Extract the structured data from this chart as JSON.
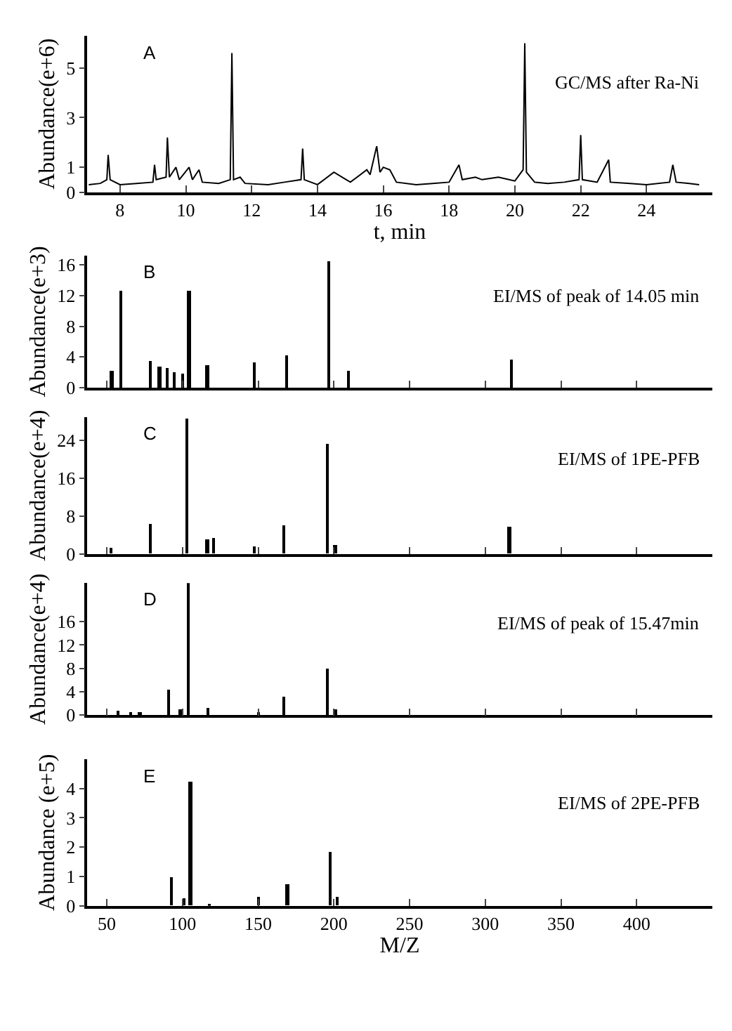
{
  "chart_data": [
    {
      "type": "line",
      "title": "A",
      "annotations": [
        "GC/MS after Ra-Ni"
      ],
      "xlabel": "t, min",
      "ylabel": "Abundance(e+6)",
      "x": [
        7.05,
        7.4,
        7.6,
        7.64,
        7.7,
        8.0,
        8.5,
        9.0,
        9.05,
        9.1,
        9.4,
        9.44,
        9.5,
        9.7,
        9.8,
        10.1,
        10.2,
        10.4,
        10.5,
        11.0,
        11.35,
        11.4,
        11.45,
        11.65,
        11.8,
        12.5,
        13.0,
        13.5,
        13.55,
        13.6,
        14.0,
        14.5,
        15.0,
        15.5,
        15.6,
        15.8,
        15.9,
        16.0,
        16.2,
        16.4,
        17.0,
        17.5,
        18.0,
        18.3,
        18.4,
        18.8,
        19.0,
        19.5,
        20.0,
        20.25,
        20.3,
        20.35,
        20.6,
        21.0,
        21.5,
        21.95,
        22.0,
        22.05,
        22.5,
        22.85,
        22.9,
        23.5,
        24.0,
        24.7,
        24.8,
        24.9,
        25.3,
        25.6
      ],
      "series": [
        {
          "color": "#000000",
          "values": [
            0.3,
            0.35,
            0.5,
            1.5,
            0.5,
            0.3,
            0.35,
            0.4,
            1.1,
            0.5,
            0.6,
            2.2,
            0.6,
            1.0,
            0.5,
            1.0,
            0.5,
            0.9,
            0.4,
            0.35,
            0.5,
            5.6,
            0.5,
            0.6,
            0.35,
            0.3,
            0.4,
            0.5,
            1.75,
            0.5,
            0.3,
            0.8,
            0.4,
            0.9,
            0.7,
            1.85,
            0.8,
            1.0,
            0.9,
            0.4,
            0.3,
            0.35,
            0.4,
            1.1,
            0.5,
            0.6,
            0.5,
            0.6,
            0.45,
            0.9,
            6.0,
            0.8,
            0.4,
            0.35,
            0.4,
            0.5,
            2.3,
            0.5,
            0.4,
            1.3,
            0.4,
            0.35,
            0.3,
            0.4,
            1.1,
            0.4,
            0.35,
            0.3
          ]
        }
      ],
      "xlim": [
        7,
        26
      ],
      "xticks": [
        8,
        10,
        12,
        14,
        16,
        18,
        20,
        22,
        24
      ],
      "ylim": [
        0,
        6.3
      ],
      "yticks": [
        0,
        1,
        3,
        5
      ]
    },
    {
      "type": "bar",
      "title": "B",
      "annotations": [
        "EI/MS of peak of 14.05 min"
      ],
      "ylabel": "Abundance(e+3)",
      "x": [
        53.5,
        59.2,
        79,
        85,
        90,
        95,
        100,
        104.5,
        116.6,
        148,
        168.8,
        196.8,
        209.6,
        317.8
      ],
      "series": [
        {
          "color": "#000000",
          "values": [
            2.2,
            12.7,
            3.5,
            2.8,
            2.5,
            2.0,
            1.8,
            12.7,
            2.9,
            3.3,
            4.2,
            16.5,
            2.1,
            3.6
          ]
        }
      ],
      "xlim": [
        37,
        450
      ],
      "xticks": [
        50,
        100,
        150,
        200,
        250,
        300,
        350,
        400
      ],
      "ylim": [
        0,
        17.2
      ],
      "yticks": [
        0,
        4,
        8,
        12,
        16
      ],
      "tick_labels": "y"
    },
    {
      "type": "bar",
      "title": "C",
      "annotations": [
        "EI/MS of 1PE-PFB"
      ],
      "ylabel": "Abundance(e+4)",
      "x": [
        53,
        79,
        103,
        116.6,
        120.4,
        148,
        166.9,
        195.9,
        201,
        316.2
      ],
      "series": [
        {
          "color": "#000000",
          "values": [
            1.3,
            6.3,
            28.6,
            3.0,
            3.5,
            1.5,
            6.1,
            23.2,
            2.0,
            5.8
          ]
        }
      ],
      "xlim": [
        37,
        450
      ],
      "xticks": [
        50,
        100,
        150,
        200,
        250,
        300,
        350,
        400
      ],
      "ylim": [
        0,
        29
      ],
      "yticks": [
        0,
        8,
        16,
        24
      ],
      "tick_labels": "y"
    },
    {
      "type": "bar",
      "title": "D",
      "annotations": [
        "EI/MS of peak of 15.47min"
      ],
      "ylabel": "Abundance(e+4)",
      "x": [
        58,
        66,
        72,
        91,
        99,
        103.8,
        117,
        150.6,
        167.5,
        196,
        201
      ],
      "series": [
        {
          "color": "#000000",
          "values": [
            0.6,
            0.4,
            0.3,
            4.4,
            1.0,
            22.5,
            1.1,
            0.5,
            3.0,
            7.9,
            0.9
          ]
        }
      ],
      "xlim": [
        37,
        450
      ],
      "xticks": [
        50,
        100,
        150,
        200,
        250,
        300,
        350,
        400
      ],
      "ylim": [
        0,
        22.6
      ],
      "yticks": [
        0,
        4,
        8,
        12,
        16
      ],
      "tick_labels": "y"
    },
    {
      "type": "bar",
      "title": "E",
      "annotations": [
        "EI/MS of 2PE-PFB"
      ],
      "xlabel": "M/Z",
      "ylabel": "Abundance (e+5)",
      "x": [
        92.7,
        101,
        105.4,
        118,
        150.6,
        169.4,
        197.8,
        202.5
      ],
      "series": [
        {
          "color": "#000000",
          "values": [
            1.0,
            0.26,
            4.25,
            0.08,
            0.3,
            0.72,
            1.83,
            0.3
          ]
        }
      ],
      "xlim": [
        37,
        450
      ],
      "xticks": [
        50,
        100,
        150,
        200,
        250,
        300,
        350,
        400
      ],
      "ylim": [
        0,
        5.0
      ],
      "yticks": [
        0,
        1,
        2,
        3,
        4
      ]
    }
  ]
}
